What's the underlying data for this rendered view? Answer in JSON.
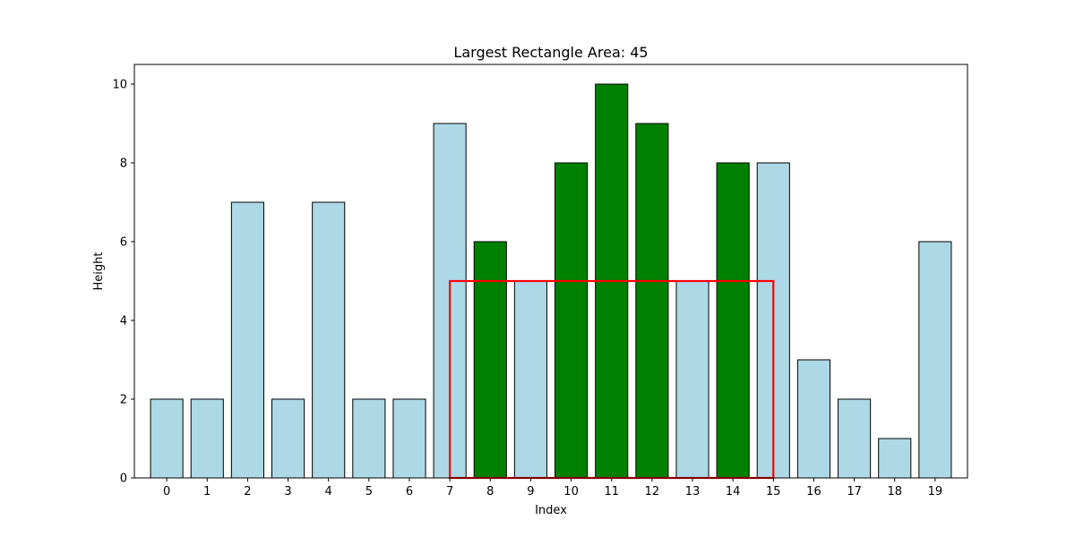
{
  "chart_data": {
    "type": "bar",
    "title": "Largest Rectangle Area: 45",
    "xlabel": "Index",
    "ylabel": "Height",
    "categories": [
      "0",
      "1",
      "2",
      "3",
      "4",
      "5",
      "6",
      "7",
      "8",
      "9",
      "10",
      "11",
      "12",
      "13",
      "14",
      "15",
      "16",
      "17",
      "18",
      "19"
    ],
    "values": [
      2,
      2,
      7,
      2,
      7,
      2,
      2,
      9,
      6,
      5,
      8,
      10,
      9,
      5,
      8,
      8,
      3,
      2,
      1,
      6
    ],
    "highlighted_indices": [
      8,
      10,
      11,
      12,
      14
    ],
    "ylim": [
      0,
      10.5
    ],
    "yticks": [
      0,
      2,
      4,
      6,
      8,
      10
    ],
    "grid": false,
    "colors": {
      "bar": "#add8e6",
      "highlight": "#008000",
      "edge": "#000000",
      "rectangle": "#ff0000"
    },
    "largest_rectangle": {
      "start_index": 7,
      "end_index": 15,
      "height": 5
    }
  }
}
